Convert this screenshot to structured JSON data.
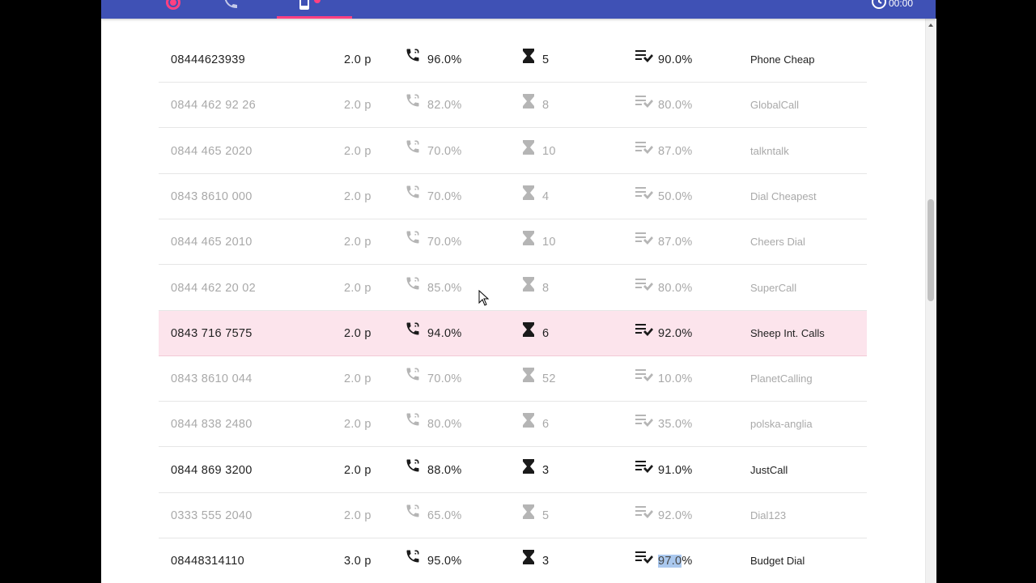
{
  "header": {
    "clock_text": "00:00"
  },
  "rows": [
    {
      "number": "08444623939",
      "price": "2.0 p",
      "answer_rate": "96.0%",
      "wait": "5",
      "quality": "90.0%",
      "provider": "Phone Cheap",
      "style": "bold"
    },
    {
      "number": "0844 462 92 26",
      "price": "2.0 p",
      "answer_rate": "82.0%",
      "wait": "8",
      "quality": "80.0%",
      "provider": "GlobalCall",
      "style": "dim"
    },
    {
      "number": "0844 465 2020",
      "price": "2.0 p",
      "answer_rate": "70.0%",
      "wait": "10",
      "quality": "87.0%",
      "provider": "talkntalk",
      "style": "dim"
    },
    {
      "number": "0843 8610 000",
      "price": "2.0 p",
      "answer_rate": "70.0%",
      "wait": "4",
      "quality": "50.0%",
      "provider": "Dial Cheapest",
      "style": "dim"
    },
    {
      "number": "0844 465 2010",
      "price": "2.0 p",
      "answer_rate": "70.0%",
      "wait": "10",
      "quality": "87.0%",
      "provider": "Cheers Dial",
      "style": "dim"
    },
    {
      "number": "0844 462 20 02",
      "price": "2.0 p",
      "answer_rate": "85.0%",
      "wait": "8",
      "quality": "80.0%",
      "provider": "SuperCall",
      "style": "dim"
    },
    {
      "number": "0843 716 7575",
      "price": "2.0 p",
      "answer_rate": "94.0%",
      "wait": "6",
      "quality": "92.0%",
      "provider": "Sheep Int. Calls",
      "style": "bold selected"
    },
    {
      "number": "0843 8610 044",
      "price": "2.0 p",
      "answer_rate": "70.0%",
      "wait": "52",
      "quality": "10.0%",
      "provider": "PlanetCalling",
      "style": "dim"
    },
    {
      "number": "0844 838 2480",
      "price": "2.0 p",
      "answer_rate": "80.0%",
      "wait": "6",
      "quality": "35.0%",
      "provider": "polska-anglia",
      "style": "dim"
    },
    {
      "number": "0844 869 3200",
      "price": "2.0 p",
      "answer_rate": "88.0%",
      "wait": "3",
      "quality": "91.0%",
      "provider": "JustCall",
      "style": "bold"
    },
    {
      "number": "0333 555 2040",
      "price": "2.0 p",
      "answer_rate": "65.0%",
      "wait": "5",
      "quality": "92.0%",
      "provider": "Dial123",
      "style": "dim"
    },
    {
      "number": "08448314110",
      "price": "3.0 p",
      "answer_rate": "95.0%",
      "wait": "3",
      "quality": "97.0%",
      "provider": "Budget Dial",
      "style": "bold",
      "quality_highlighted": true
    }
  ],
  "icons": {
    "answer": "phone-in-talk-icon",
    "wait": "hourglass-icon",
    "quality": "playlist-check-icon"
  },
  "colors": {
    "topbar": "#3f51b5",
    "accent": "#ff4081",
    "selected_row": "#fce4ec",
    "dim_text": "#a9a9a9",
    "bold_text": "#222222"
  }
}
